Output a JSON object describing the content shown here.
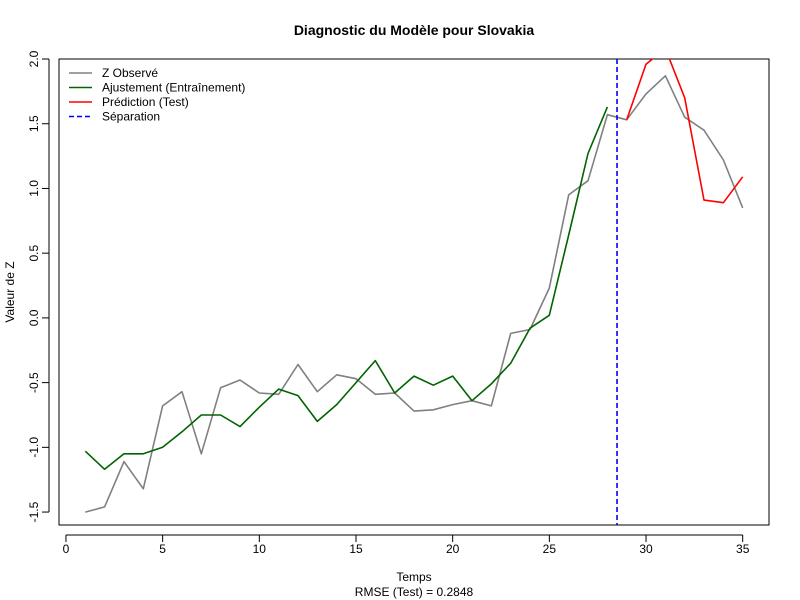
{
  "chart_data": {
    "type": "line",
    "title": "Diagnostic du Modèle pour Slovakia",
    "xlabel": "Temps",
    "ylabel": "Valeur de Z",
    "subtitle": "RMSE (Test) = 0.2848",
    "xlim": [
      -0.36,
      36.36
    ],
    "ylim": [
      -1.6,
      2.0
    ],
    "x_ticks": [
      "0",
      "5",
      "10",
      "15",
      "20",
      "25",
      "30",
      "35"
    ],
    "y_ticks": [
      "-1.5",
      "-1.0",
      "-0.5",
      "0.0",
      "0.5",
      "1.0",
      "1.5",
      "2.0"
    ],
    "legend_position": "top-left",
    "split_x": 28.5,
    "series": [
      {
        "name": "Z Observé",
        "color": "#808080",
        "x": [
          1,
          2,
          3,
          4,
          5,
          6,
          7,
          8,
          9,
          10,
          11,
          12,
          13,
          14,
          15,
          16,
          17,
          18,
          19,
          20,
          21,
          22,
          23,
          24,
          25,
          26,
          27,
          28,
          29,
          30,
          31,
          32,
          33,
          34,
          35
        ],
        "values": [
          -1.5,
          -1.46,
          -1.11,
          -1.32,
          -0.68,
          -0.57,
          -1.05,
          -0.54,
          -0.48,
          -0.58,
          -0.59,
          -0.36,
          -0.57,
          -0.44,
          -0.47,
          -0.59,
          -0.58,
          -0.72,
          -0.71,
          -0.67,
          -0.64,
          -0.68,
          -0.12,
          -0.09,
          0.23,
          0.95,
          1.06,
          1.57,
          1.53,
          1.73,
          1.87,
          1.55,
          1.45,
          1.22,
          0.85
        ]
      },
      {
        "name": "Ajustement (Entraînement)",
        "color": "#006400",
        "x": [
          1,
          2,
          3,
          4,
          5,
          6,
          7,
          8,
          9,
          10,
          11,
          12,
          13,
          14,
          15,
          16,
          17,
          18,
          19,
          20,
          21,
          22,
          23,
          24,
          25,
          26,
          27,
          28
        ],
        "values": [
          -1.03,
          -1.17,
          -1.05,
          -1.05,
          -1.0,
          -0.88,
          -0.75,
          -0.75,
          -0.84,
          -0.69,
          -0.55,
          -0.6,
          -0.8,
          -0.67,
          -0.5,
          -0.33,
          -0.58,
          -0.45,
          -0.52,
          -0.45,
          -0.64,
          -0.51,
          -0.35,
          -0.08,
          0.02,
          0.64,
          1.27,
          1.63
        ]
      },
      {
        "name": "Prédiction (Test)",
        "color": "#ff0000",
        "x": [
          29,
          30,
          31,
          32,
          33,
          34,
          35
        ],
        "values": [
          1.53,
          1.96,
          2.08,
          1.7,
          0.91,
          0.89,
          1.09
        ]
      },
      {
        "name": "Séparation",
        "color": "#0000ff"
      }
    ]
  }
}
